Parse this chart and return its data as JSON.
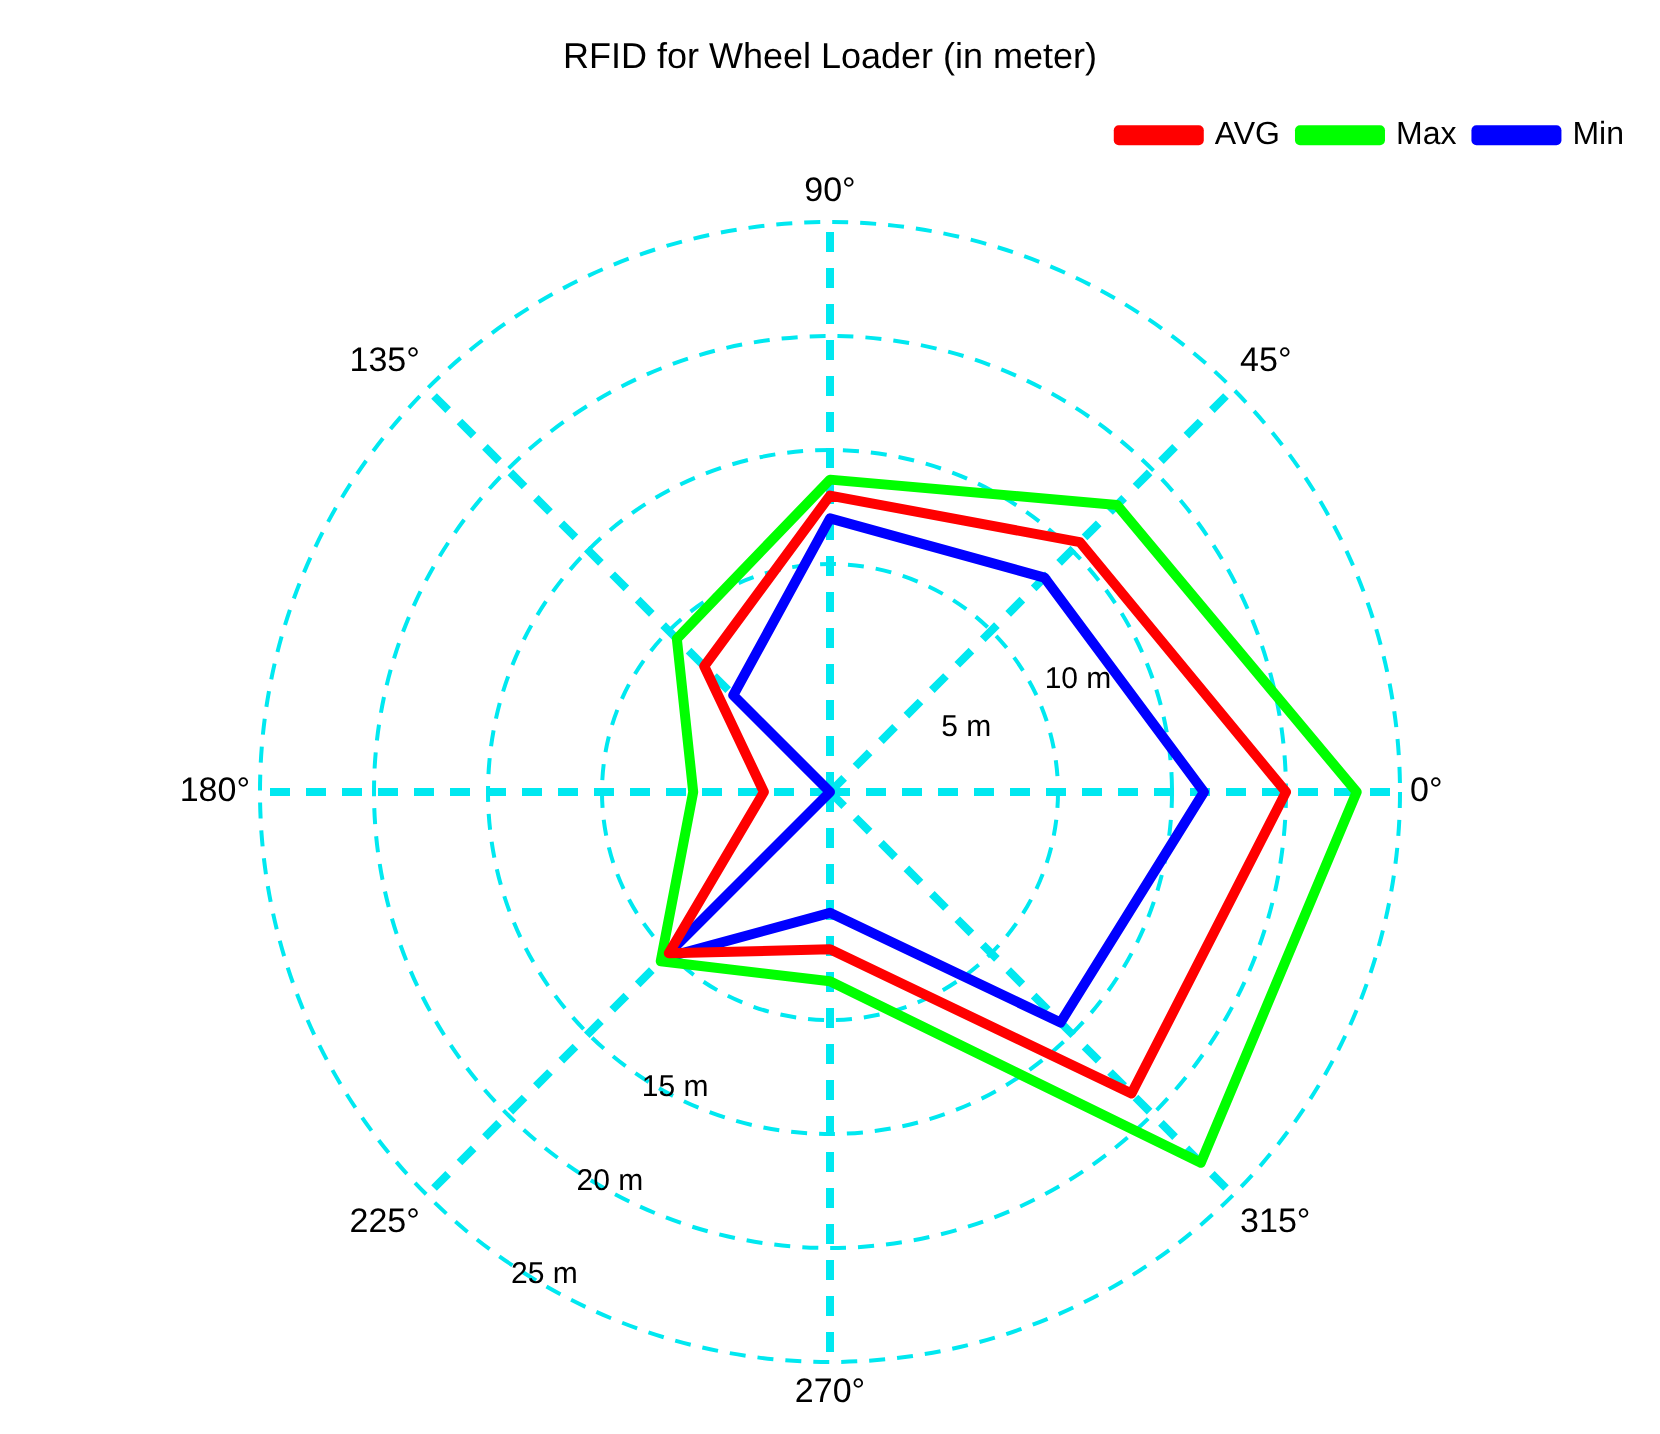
{
  "chart_data": {
    "type": "radar",
    "title": "RFID for Wheel Loader (in meter)",
    "categories": [
      "90°",
      "45°",
      "0°",
      "315°",
      "270°",
      "225°",
      "180°",
      "135°"
    ],
    "series": [
      {
        "name": "AVG",
        "color": "#ff0000",
        "values": [
          13,
          15.5,
          20,
          18.7,
          6.9,
          10,
          2.9,
          7.8
        ]
      },
      {
        "name": "Max",
        "color": "#00ff00",
        "values": [
          13.7,
          17.8,
          23.1,
          23,
          8.3,
          10.5,
          6,
          9.5
        ]
      },
      {
        "name": "Min",
        "color": "#0000ff",
        "values": [
          12,
          13.3,
          16.4,
          14.3,
          5.3,
          10.3,
          0,
          6
        ]
      }
    ],
    "ylim": [
      0,
      25
    ],
    "yticks": [
      {
        "value": 5,
        "label": "5 m"
      },
      {
        "value": 10,
        "label": "10 m"
      },
      {
        "value": 15,
        "label": "15 m"
      },
      {
        "value": 20,
        "label": "20 m"
      },
      {
        "value": 25,
        "label": "25 m"
      }
    ],
    "grid": true,
    "legend": "top right",
    "marker": "none",
    "line_style": "solid"
  }
}
